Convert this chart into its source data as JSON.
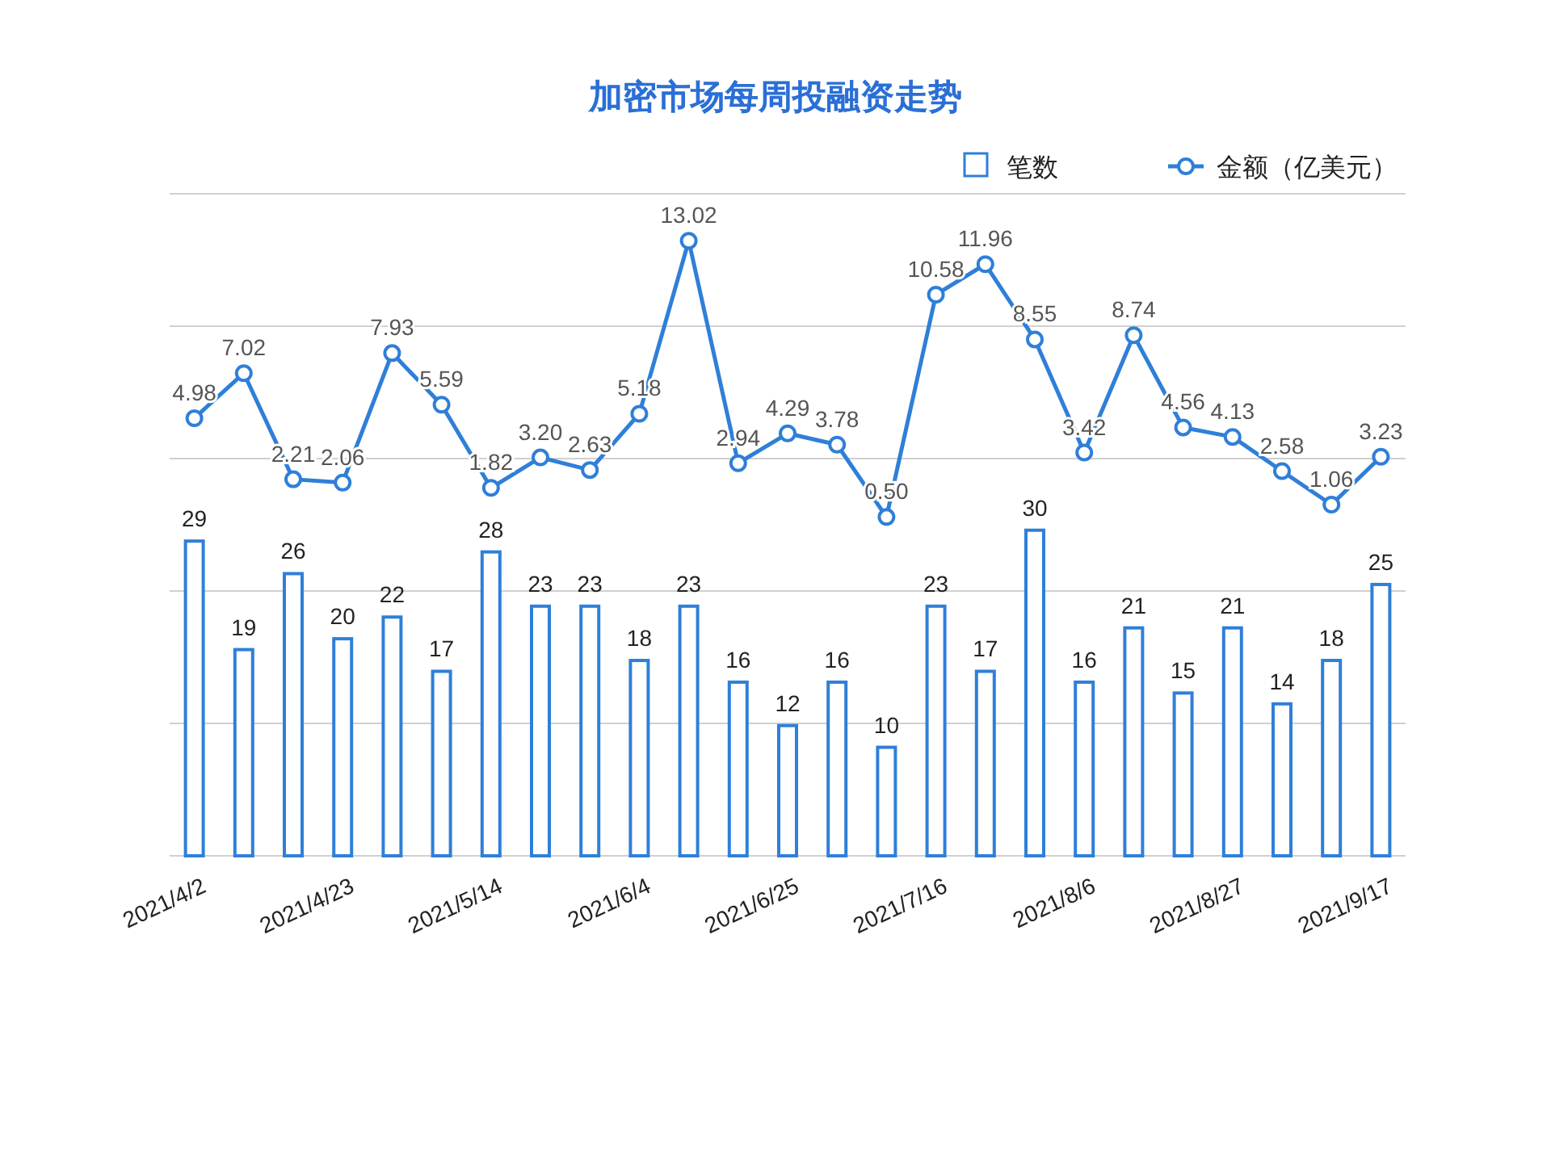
{
  "chart_data": [
    {
      "type": "bar",
      "title": "加密市场每周投融资走势",
      "categories": [
        "2021/4/2",
        null,
        null,
        "2021/4/23",
        null,
        null,
        "2021/5/14",
        null,
        null,
        "2021/6/4",
        null,
        null,
        "2021/6/25",
        null,
        null,
        "2021/7/16",
        null,
        null,
        "2021/8/6",
        null,
        null,
        "2021/8/27",
        null,
        null,
        "2021/9/17"
      ],
      "series": [
        {
          "name": "笔数",
          "color": "#2f7fd8",
          "values": [
            29,
            19,
            26,
            20,
            22,
            17,
            28,
            23,
            23,
            18,
            23,
            16,
            12,
            16,
            10,
            23,
            17,
            30,
            16,
            21,
            15,
            21,
            14,
            18,
            25
          ]
        }
      ],
      "ylim": [
        0,
        61
      ],
      "yticks": [
        {
          "value": 0,
          "label": null
        },
        {
          "value": 12.2,
          "label": null
        },
        {
          "value": 24.4,
          "label": null
        },
        {
          "value": 36.6,
          "label": null
        },
        {
          "value": 48.8,
          "label": null
        },
        {
          "value": 61,
          "label": null
        }
      ],
      "grid": "y",
      "legend": "top right",
      "data_labels": true
    },
    {
      "type": "line",
      "categories": [
        null,
        null,
        null,
        null,
        null,
        null,
        null,
        null,
        null,
        null,
        null,
        null,
        null,
        null,
        null,
        null,
        null,
        null,
        null,
        null,
        null,
        null,
        null,
        null,
        null
      ],
      "series": [
        {
          "name": "金额（亿美元）",
          "color": "#2f7fd8",
          "values": [
            4.98,
            7.02,
            2.21,
            2.06,
            7.93,
            5.59,
            1.82,
            3.2,
            2.63,
            5.18,
            13.02,
            2.94,
            4.29,
            3.78,
            0.5,
            10.58,
            11.96,
            8.55,
            3.42,
            8.74,
            4.56,
            4.13,
            2.58,
            1.06,
            3.23
          ],
          "value_labels": [
            "4.98",
            "7.02",
            "2.21",
            "2.06",
            "7.93",
            "5.59",
            "1.82",
            "3.20",
            "2.63",
            "5.18",
            "13.02",
            "2.94",
            "4.29",
            "3.78",
            "0.50",
            "10.58",
            "11.96",
            "8.55",
            "3.42",
            "8.74",
            "4.56",
            "4.13",
            "2.58",
            "1.06",
            "3.23"
          ]
        }
      ],
      "legend": "top right",
      "marker": "circle"
    }
  ]
}
